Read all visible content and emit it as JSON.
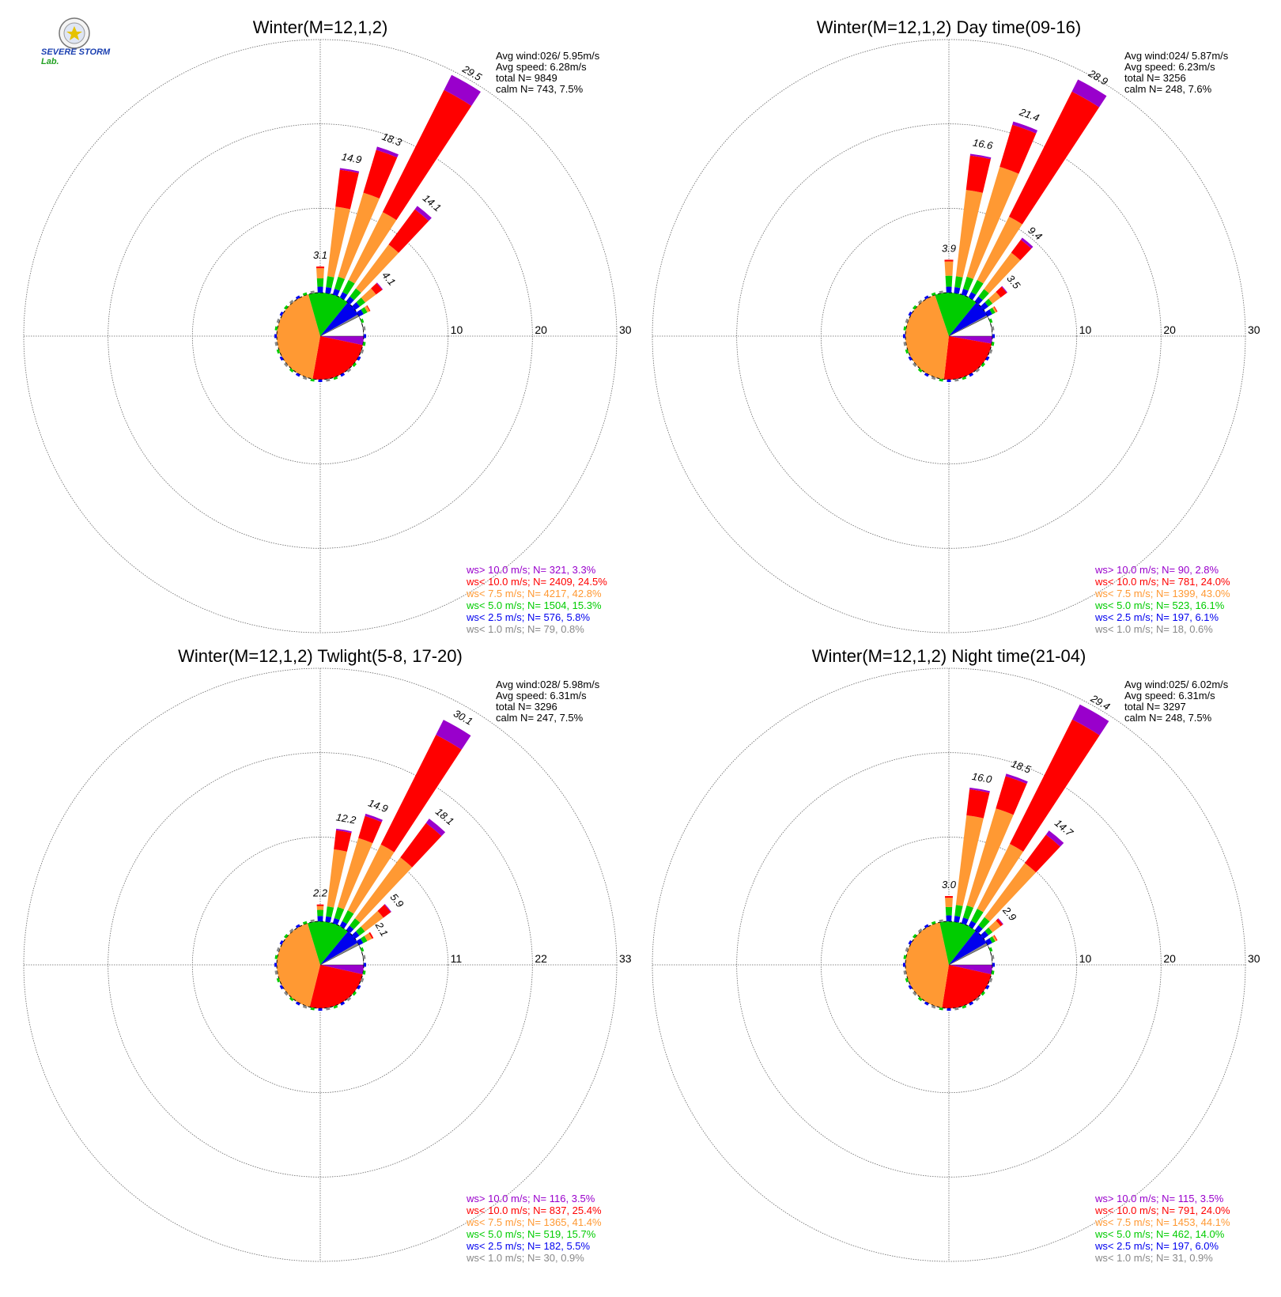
{
  "logo": {
    "text_main": "SEVERE STORM",
    "text_lab": "Lab."
  },
  "colors": {
    "ws_gt_10": "#9900cc",
    "ws_lt_10": "#ff0000",
    "ws_lt_7_5": "#ff9933",
    "ws_lt_5": "#00cc00",
    "ws_lt_2_5": "#0000ee",
    "ws_lt_1": "#888888",
    "grid": "#666666"
  },
  "chart_data": [
    {
      "type": "wind_rose",
      "title": "Winter(M=12,1,2)",
      "rings": [
        10,
        20,
        30
      ],
      "stats": {
        "avg_wind": "Avg wind:026/ 5.95m/s",
        "avg_speed": "Avg speed: 6.28m/s",
        "total": "total N=       9849",
        "calm": "calm N=    743,   7.5%"
      },
      "legend": [
        "ws> 10.0 m/s; N=   321,  3.3%",
        "ws< 10.0 m/s; N=  2409, 24.5%",
        "ws<  7.5 m/s; N=  4217, 42.8%",
        "ws<  5.0 m/s; N=  1504, 15.3%",
        "ws<  2.5 m/s; N=   576,  5.8%",
        "ws<  1.0 m/s; N=    79,  0.8%"
      ],
      "sectors": [
        {
          "dir": 0,
          "total": 3.1,
          "label": "3.1",
          "bands": [
            0,
            0.7,
            1.0,
            1.2,
            0.2,
            0.0
          ]
        },
        {
          "dir": 10,
          "total": 14.9,
          "label": "14.9",
          "bands": [
            0,
            0.7,
            1.3,
            8.3,
            4.4,
            0.2
          ]
        },
        {
          "dir": 20,
          "total": 18.3,
          "label": "18.3",
          "bands": [
            0,
            0.7,
            1.5,
            10.4,
            5.3,
            0.4
          ]
        },
        {
          "dir": 30,
          "total": 29.5,
          "label": "29.5",
          "bands": [
            0,
            0.7,
            1.6,
            9.0,
            16.2,
            2.0
          ]
        },
        {
          "dir": 40,
          "total": 14.1,
          "label": "14.1",
          "bands": [
            0,
            0.7,
            1.2,
            6.5,
            5.2,
            0.5
          ]
        },
        {
          "dir": 50,
          "total": 4.1,
          "label": "4.1",
          "bands": [
            0,
            0.7,
            0.8,
            1.6,
            0.9,
            0.1
          ]
        },
        {
          "dir": 60,
          "total": 1.5,
          "label": "",
          "bands": [
            0,
            0.6,
            0.5,
            0.3,
            0.1,
            0.0
          ]
        }
      ]
    },
    {
      "type": "wind_rose",
      "title": "Winter(M=12,1,2) Day time(09-16)",
      "rings": [
        10,
        20,
        30
      ],
      "stats": {
        "avg_wind": "Avg wind:024/ 5.87m/s",
        "avg_speed": "Avg speed: 6.23m/s",
        "total": "total N=       3256",
        "calm": "calm N=    248,   7.6%"
      },
      "legend": [
        "ws> 10.0 m/s; N=    90,  2.8%",
        "ws< 10.0 m/s; N=   781, 24.0%",
        "ws<  7.5 m/s; N=  1399, 43.0%",
        "ws<  5.0 m/s; N=   523, 16.1%",
        "ws<  2.5 m/s; N=   197,  6.1%",
        "ws<  1.0 m/s; N=    18,  0.6%"
      ],
      "sectors": [
        {
          "dir": 0,
          "total": 3.9,
          "label": "3.9",
          "bands": [
            0,
            0.7,
            1.3,
            1.7,
            0.2,
            0.0
          ]
        },
        {
          "dir": 10,
          "total": 16.6,
          "label": "16.6",
          "bands": [
            0,
            0.7,
            1.3,
            10.3,
            4.1,
            0.2
          ]
        },
        {
          "dir": 20,
          "total": 21.4,
          "label": "21.4",
          "bands": [
            0,
            0.7,
            1.5,
            13.6,
            5.2,
            0.4
          ]
        },
        {
          "dir": 30,
          "total": 28.9,
          "label": "28.9",
          "bands": [
            0,
            0.7,
            1.6,
            8.4,
            16.6,
            1.6
          ]
        },
        {
          "dir": 40,
          "total": 9.4,
          "label": "9.4",
          "bands": [
            0,
            0.7,
            1.1,
            5.4,
            1.9,
            0.3
          ]
        },
        {
          "dir": 50,
          "total": 3.5,
          "label": "3.5",
          "bands": [
            0,
            0.7,
            0.6,
            1.2,
            0.9,
            0.1
          ]
        },
        {
          "dir": 60,
          "total": 1.3,
          "label": "",
          "bands": [
            0,
            0.6,
            0.4,
            0.2,
            0.1,
            0.0
          ]
        }
      ]
    },
    {
      "type": "wind_rose",
      "title": "Winter(M=12,1,2) Twlight(5-8, 17-20)",
      "rings": [
        11,
        22,
        33
      ],
      "stats": {
        "avg_wind": "Avg wind:028/ 5.98m/s",
        "avg_speed": "Avg speed: 6.31m/s",
        "total": "total N=       3296",
        "calm": "calm N=    247,   7.5%"
      },
      "legend": [
        "ws> 10.0 m/s; N=   116,  3.5%",
        "ws< 10.0 m/s; N=   837, 25.4%",
        "ws<  7.5 m/s; N=  1365, 41.4%",
        "ws<  5.0 m/s; N=   519, 15.7%",
        "ws<  2.5 m/s; N=   182,  5.5%",
        "ws<  1.0 m/s; N=    30,  0.9%"
      ],
      "sectors": [
        {
          "dir": 0,
          "total": 2.2,
          "label": "2.2",
          "bands": [
            0,
            0.7,
            0.8,
            0.5,
            0.2,
            0.0
          ]
        },
        {
          "dir": 10,
          "total": 12.2,
          "label": "12.2",
          "bands": [
            0,
            0.7,
            1.3,
            7.5,
            2.5,
            0.2
          ]
        },
        {
          "dir": 20,
          "total": 14.9,
          "label": "14.9",
          "bands": [
            0,
            0.7,
            1.5,
            9.4,
            3.0,
            0.3
          ]
        },
        {
          "dir": 30,
          "total": 30.1,
          "label": "30.1",
          "bands": [
            0,
            0.7,
            1.6,
            9.6,
            16.0,
            2.2
          ]
        },
        {
          "dir": 40,
          "total": 18.1,
          "label": "18.1",
          "bands": [
            0,
            0.7,
            1.2,
            9.9,
            5.6,
            0.7
          ]
        },
        {
          "dir": 50,
          "total": 5.9,
          "label": "5.9",
          "bands": [
            0,
            0.7,
            0.9,
            3.0,
            1.2,
            0.1
          ]
        },
        {
          "dir": 60,
          "total": 2.1,
          "label": "2.1",
          "bands": [
            0,
            0.6,
            0.6,
            0.7,
            0.2,
            0.0
          ]
        }
      ]
    },
    {
      "type": "wind_rose",
      "title": "Winter(M=12,1,2) Night time(21-04)",
      "rings": [
        10,
        20,
        30
      ],
      "stats": {
        "avg_wind": "Avg wind:025/ 6.02m/s",
        "avg_speed": "Avg speed: 6.31m/s",
        "total": "total N=       3297",
        "calm": "calm N=    248,   7.5%"
      },
      "legend": [
        "ws> 10.0 m/s; N=   115,  3.5%",
        "ws< 10.0 m/s; N=   791, 24.0%",
        "ws<  7.5 m/s; N=  1453, 44.1%",
        "ws<  5.0 m/s; N=   462, 14.0%",
        "ws<  2.5 m/s; N=   197,  6.0%",
        "ws<  1.0 m/s; N=    31,  0.9%"
      ],
      "sectors": [
        {
          "dir": 0,
          "total": 3.0,
          "label": "3.0",
          "bands": [
            0,
            0.7,
            1.0,
            1.1,
            0.2,
            0.0
          ]
        },
        {
          "dir": 10,
          "total": 16.0,
          "label": "16.0",
          "bands": [
            0,
            0.7,
            1.3,
            10.7,
            3.1,
            0.2
          ]
        },
        {
          "dir": 20,
          "total": 18.5,
          "label": "18.5",
          "bands": [
            0,
            0.7,
            1.5,
            12.0,
            4.0,
            0.3
          ]
        },
        {
          "dir": 30,
          "total": 29.4,
          "label": "29.4",
          "bands": [
            0,
            0.7,
            1.6,
            8.6,
            16.5,
            2.0
          ]
        },
        {
          "dir": 40,
          "total": 14.7,
          "label": "14.7",
          "bands": [
            0,
            0.7,
            1.2,
            8.0,
            4.2,
            0.6
          ]
        },
        {
          "dir": 50,
          "total": 2.9,
          "label": "2.9",
          "bands": [
            0,
            0.7,
            0.6,
            1.2,
            0.3,
            0.1
          ]
        },
        {
          "dir": 60,
          "total": 1.3,
          "label": "",
          "bands": [
            0,
            0.6,
            0.4,
            0.2,
            0.1,
            0.0
          ]
        }
      ]
    }
  ]
}
